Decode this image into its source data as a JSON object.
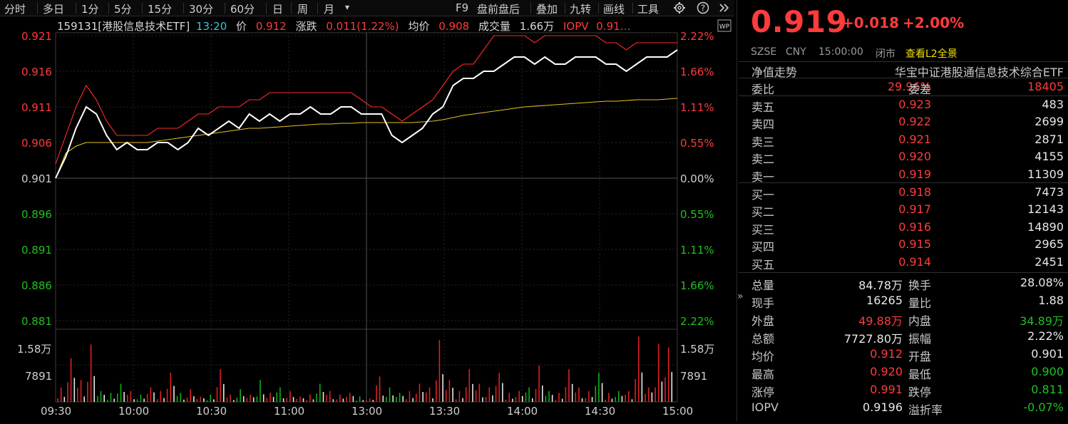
{
  "toolbar": {
    "tabs": [
      "分时",
      "多日",
      "1分",
      "5分",
      "15分",
      "30分",
      "60分",
      "日",
      "周",
      "月"
    ],
    "dropdown": "▾",
    "right_items": [
      "F9",
      "盘前盘后",
      "叠加",
      "九转",
      "画线",
      "工具"
    ]
  },
  "chart_header": {
    "code_name": "159131[港股信息技术ETF]",
    "time": "13:20",
    "price_label": "价",
    "price": "0.912",
    "change_label": "涨跌",
    "change": "0.011(1.22%)",
    "avg_label": "均价",
    "avg": "0.908",
    "vol_label": "成交量",
    "vol": "1.66万",
    "iopv_label": "IOPV",
    "iopv": "0.91…",
    "wp_badge": "WP"
  },
  "price_axis": {
    "left_labels": [
      "0.921",
      "0.916",
      "0.911",
      "0.906",
      "0.901",
      "0.896",
      "0.891",
      "0.886",
      "0.881"
    ],
    "right_labels": [
      "2.22%",
      "1.66%",
      "1.11%",
      "0.55%",
      "0.00%",
      "0.55%",
      "1.11%",
      "1.66%",
      "2.22%"
    ]
  },
  "volume_axis": {
    "labels": [
      "1.58万",
      "7891"
    ]
  },
  "time_axis": [
    "09:30",
    "10:00",
    "10:30",
    "11:00",
    "13:00",
    "13:30",
    "14:00",
    "14:30",
    "15:00"
  ],
  "chart_data": {
    "type": "line",
    "prev_close": 0.901,
    "ylim": [
      0.881,
      0.921
    ],
    "series": [
      {
        "name": "价",
        "color": "#ffffff",
        "values": [
          0.901,
          0.904,
          0.908,
          0.911,
          0.91,
          0.907,
          0.905,
          0.906,
          0.905,
          0.905,
          0.906,
          0.906,
          0.905,
          0.906,
          0.908,
          0.907,
          0.908,
          0.909,
          0.908,
          0.91,
          0.909,
          0.91,
          0.909,
          0.91,
          0.91,
          0.911,
          0.91,
          0.91,
          0.911,
          0.911,
          0.91,
          0.91,
          0.91,
          0.907,
          0.906,
          0.907,
          0.908,
          0.91,
          0.911,
          0.914,
          0.915,
          0.915,
          0.916,
          0.916,
          0.917,
          0.918,
          0.918,
          0.917,
          0.918,
          0.917,
          0.917,
          0.918,
          0.918,
          0.918,
          0.917,
          0.917,
          0.916,
          0.917,
          0.918,
          0.918,
          0.918,
          0.919
        ],
        "color_note": "last price"
      },
      {
        "name": "IOPV",
        "color": "#ff2a2a",
        "values": [
          0.903,
          0.907,
          0.911,
          0.914,
          0.912,
          0.909,
          0.907,
          0.907,
          0.907,
          0.907,
          0.908,
          0.908,
          0.908,
          0.909,
          0.91,
          0.91,
          0.911,
          0.911,
          0.911,
          0.912,
          0.912,
          0.913,
          0.913,
          0.913,
          0.913,
          0.913,
          0.913,
          0.913,
          0.913,
          0.913,
          0.912,
          0.911,
          0.911,
          0.91,
          0.909,
          0.91,
          0.911,
          0.912,
          0.914,
          0.916,
          0.917,
          0.917,
          0.919,
          0.921,
          0.921,
          0.921,
          0.921,
          0.92,
          0.921,
          0.921,
          0.921,
          0.921,
          0.921,
          0.921,
          0.92,
          0.92,
          0.919,
          0.92,
          0.92,
          0.92,
          0.92,
          0.92
        ]
      },
      {
        "name": "均价",
        "color": "#e8c020",
        "values": [
          0.901,
          0.9045,
          0.9055,
          0.906,
          0.906,
          0.906,
          0.906,
          0.906,
          0.906,
          0.906,
          0.9062,
          0.9064,
          0.9066,
          0.9068,
          0.907,
          0.9072,
          0.9074,
          0.9076,
          0.9078,
          0.908,
          0.908,
          0.9081,
          0.9082,
          0.9083,
          0.9084,
          0.9085,
          0.9086,
          0.9086,
          0.9087,
          0.9087,
          0.9088,
          0.9088,
          0.9088,
          0.9088,
          0.9088,
          0.9088,
          0.9089,
          0.909,
          0.9092,
          0.9095,
          0.9098,
          0.91,
          0.9102,
          0.9104,
          0.9106,
          0.9108,
          0.911,
          0.9111,
          0.9112,
          0.9113,
          0.9114,
          0.9115,
          0.9116,
          0.9117,
          0.9118,
          0.9118,
          0.9119,
          0.912,
          0.912,
          0.912,
          0.9121,
          0.9122
        ]
      }
    ],
    "volume_scale_max": 20000,
    "volume": [
      4000,
      12000,
      6000,
      15800,
      3000,
      2500,
      5000,
      3000,
      2000,
      4000,
      3000,
      8000,
      2500,
      3500,
      1500,
      2000,
      9000,
      2000,
      3500,
      2000,
      6000,
      2500,
      4000,
      3000,
      1500,
      2000,
      5000,
      3000,
      2000,
      2500,
      1500,
      1000,
      7000,
      4000,
      2500,
      3000,
      5000,
      4000,
      17000,
      6000,
      3000,
      9000,
      5000,
      4000,
      8000,
      2500,
      3000,
      4000,
      10000,
      3000,
      2500,
      9000,
      4000,
      3000,
      8000,
      2500,
      3000,
      3000,
      18000,
      4000,
      16000,
      15000
    ]
  },
  "quote": {
    "price": "0.919",
    "change": "+0.018",
    "change_pct": "+2.00%",
    "exchange": "SZSE",
    "currency": "CNY",
    "time": "15:00:00",
    "status": "闭市",
    "l2_link": "查看L2全景",
    "nav_label": "净值走势",
    "index_name": "华宝中证港股通信息技术综合ETF",
    "webi_label": "委比",
    "webi": "29.96%",
    "wecha_label": "委差",
    "wecha": "18405",
    "asks": [
      {
        "label": "卖五",
        "price": "0.923",
        "vol": "483"
      },
      {
        "label": "卖四",
        "price": "0.922",
        "vol": "2699"
      },
      {
        "label": "卖三",
        "price": "0.921",
        "vol": "2871"
      },
      {
        "label": "卖二",
        "price": "0.920",
        "vol": "4155"
      },
      {
        "label": "卖一",
        "price": "0.919",
        "vol": "11309"
      }
    ],
    "bids": [
      {
        "label": "买一",
        "price": "0.918",
        "vol": "7473"
      },
      {
        "label": "买二",
        "price": "0.917",
        "vol": "12143"
      },
      {
        "label": "买三",
        "price": "0.916",
        "vol": "14890"
      },
      {
        "label": "买四",
        "price": "0.915",
        "vol": "2965"
      },
      {
        "label": "买五",
        "price": "0.914",
        "vol": "2451"
      }
    ],
    "stats": [
      {
        "l1": "总量",
        "v1": "84.78万",
        "c1": "white",
        "l2": "换手",
        "v2": "28.08%",
        "c2": "white"
      },
      {
        "l1": "现手",
        "v1": "16265",
        "c1": "white",
        "l2": "量比",
        "v2": "1.88",
        "c2": "white"
      },
      {
        "l1": "外盘",
        "v1": "49.88万",
        "c1": "red",
        "l2": "内盘",
        "v2": "34.89万",
        "c2": "green"
      },
      {
        "l1": "总额",
        "v1": "7727.80万",
        "c1": "white",
        "l2": "振幅",
        "v2": "2.22%",
        "c2": "white"
      },
      {
        "l1": "均价",
        "v1": "0.912",
        "c1": "red",
        "l2": "开盘",
        "v2": "0.901",
        "c2": "white"
      },
      {
        "l1": "最高",
        "v1": "0.920",
        "c1": "red",
        "l2": "最低",
        "v2": "0.900",
        "c2": "green"
      },
      {
        "l1": "涨停",
        "v1": "0.991",
        "c1": "red",
        "l2": "跌停",
        "v2": "0.811",
        "c2": "green"
      },
      {
        "l1": "IOPV",
        "v1": "0.9196",
        "c1": "white",
        "l2": "溢折率",
        "v2": "-0.07%",
        "c2": "green"
      }
    ]
  }
}
